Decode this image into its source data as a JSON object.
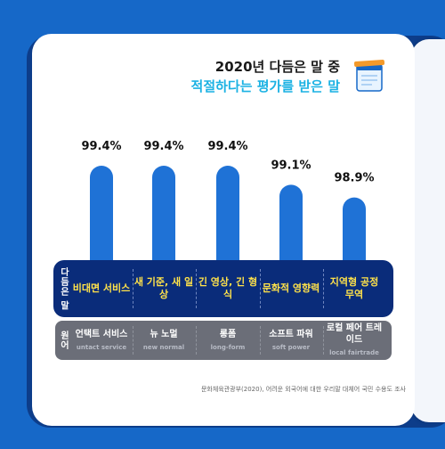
{
  "headline": {
    "line1": "2020년 다듬은 말 중",
    "line2": "적절하다는 평가를 받은 말"
  },
  "row_labels": {
    "refined": "다듬은 말",
    "original": "원어"
  },
  "items": [
    {
      "value_text": "99.4%",
      "refined": "비대면 서비스",
      "original_ko": "언택트 서비스",
      "original_en": "untact service"
    },
    {
      "value_text": "99.4%",
      "refined": "새 기준, 새 일상",
      "original_ko": "뉴 노멀",
      "original_en": "new normal"
    },
    {
      "value_text": "99.4%",
      "refined": "긴 영상, 긴 형식",
      "original_ko": "롱폼",
      "original_en": "long-form"
    },
    {
      "value_text": "99.1%",
      "refined": "문화적 영향력",
      "original_ko": "소프트 파워",
      "original_en": "soft power"
    },
    {
      "value_text": "98.9%",
      "refined": "지역형 공정 무역",
      "original_ko": "로컬 페어 트레이드",
      "original_en": "local fairtrade"
    }
  ],
  "source": "문화체육관광부(2020), 어려운 외국어에 대한 우리말 대체어 국민 수용도 조사",
  "colors": {
    "background": "#1668c8",
    "bar": "#1f72d6",
    "accent_text": "#1cb2e3",
    "label_box": "#0a2c7a",
    "label_text": "#ffe24a",
    "grey_box": "#6b6e78"
  },
  "chart_data": {
    "type": "bar",
    "categories": [
      "비대면 서비스",
      "새 기준, 새 일상",
      "긴 영상, 긴 형식",
      "문화적 영향력",
      "지역형 공정 무역"
    ],
    "values": [
      99.4,
      99.4,
      99.4,
      99.1,
      98.9
    ],
    "unit": "%",
    "title": "2020년 다듬은 말 중 적절하다는 평가를 받은 말",
    "xlabel": "",
    "ylabel": "",
    "ylim": [
      97.8,
      99.4
    ],
    "grid": false
  }
}
